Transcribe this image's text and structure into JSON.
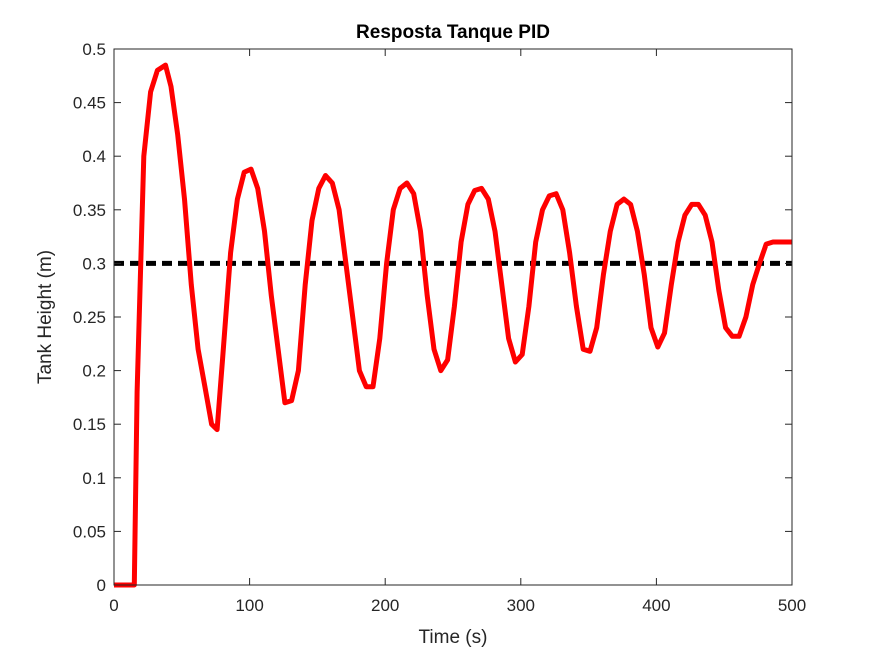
{
  "chart_data": {
    "type": "line",
    "title": "Resposta Tanque PID",
    "xlabel": "Time (s)",
    "ylabel": "Tank Height (m)",
    "xlim": [
      0,
      500
    ],
    "ylim": [
      0,
      0.5
    ],
    "xticks": [
      "0",
      "100",
      "200",
      "300",
      "400",
      "500"
    ],
    "yticks": [
      "0",
      "0.05",
      "0.1",
      "0.15",
      "0.2",
      "0.25",
      "0.3",
      "0.35",
      "0.4",
      "0.45",
      "0.5"
    ],
    "grid": false,
    "series": [
      {
        "style": "solid",
        "color": "#ff0000",
        "x": [
          0,
          15,
          17,
          22,
          27,
          32,
          38,
          42,
          47,
          52,
          57,
          62,
          67,
          72,
          76,
          80,
          86,
          91,
          96,
          101,
          106,
          111,
          116,
          121,
          126,
          131,
          136,
          141,
          146,
          151,
          156,
          161,
          166,
          171,
          176,
          181,
          186,
          191,
          196,
          201,
          206,
          211,
          216,
          221,
          226,
          231,
          236,
          241,
          246,
          251,
          256,
          261,
          266,
          271,
          276,
          281,
          286,
          291,
          296,
          301,
          306,
          311,
          316,
          321,
          326,
          331,
          336,
          341,
          346,
          351,
          356,
          361,
          366,
          371,
          376,
          381,
          386,
          391,
          396,
          401,
          406,
          411,
          416,
          421,
          426,
          431,
          436,
          441,
          446,
          451,
          456,
          461,
          466,
          471,
          476,
          481,
          486,
          491,
          496,
          500
        ],
        "y": [
          0,
          0,
          0.18,
          0.4,
          0.46,
          0.48,
          0.485,
          0.465,
          0.42,
          0.36,
          0.28,
          0.22,
          0.185,
          0.15,
          0.145,
          0.21,
          0.31,
          0.36,
          0.385,
          0.388,
          0.37,
          0.33,
          0.27,
          0.22,
          0.17,
          0.172,
          0.2,
          0.28,
          0.34,
          0.37,
          0.382,
          0.375,
          0.35,
          0.3,
          0.25,
          0.2,
          0.185,
          0.185,
          0.23,
          0.3,
          0.35,
          0.37,
          0.375,
          0.365,
          0.33,
          0.27,
          0.22,
          0.2,
          0.21,
          0.26,
          0.32,
          0.355,
          0.368,
          0.37,
          0.36,
          0.33,
          0.28,
          0.23,
          0.208,
          0.215,
          0.26,
          0.32,
          0.35,
          0.363,
          0.365,
          0.35,
          0.31,
          0.26,
          0.22,
          0.218,
          0.24,
          0.29,
          0.33,
          0.355,
          0.36,
          0.355,
          0.33,
          0.29,
          0.24,
          0.222,
          0.235,
          0.28,
          0.32,
          0.345,
          0.355,
          0.355,
          0.345,
          0.32,
          0.275,
          0.24,
          0.232,
          0.232,
          0.25,
          0.28,
          0.3,
          0.318,
          0.32,
          0.32,
          0.32,
          0.32
        ]
      },
      {
        "style": "dashed",
        "color": "#000000",
        "x": [
          0,
          500
        ],
        "y": [
          0.3,
          0.3
        ]
      }
    ]
  }
}
